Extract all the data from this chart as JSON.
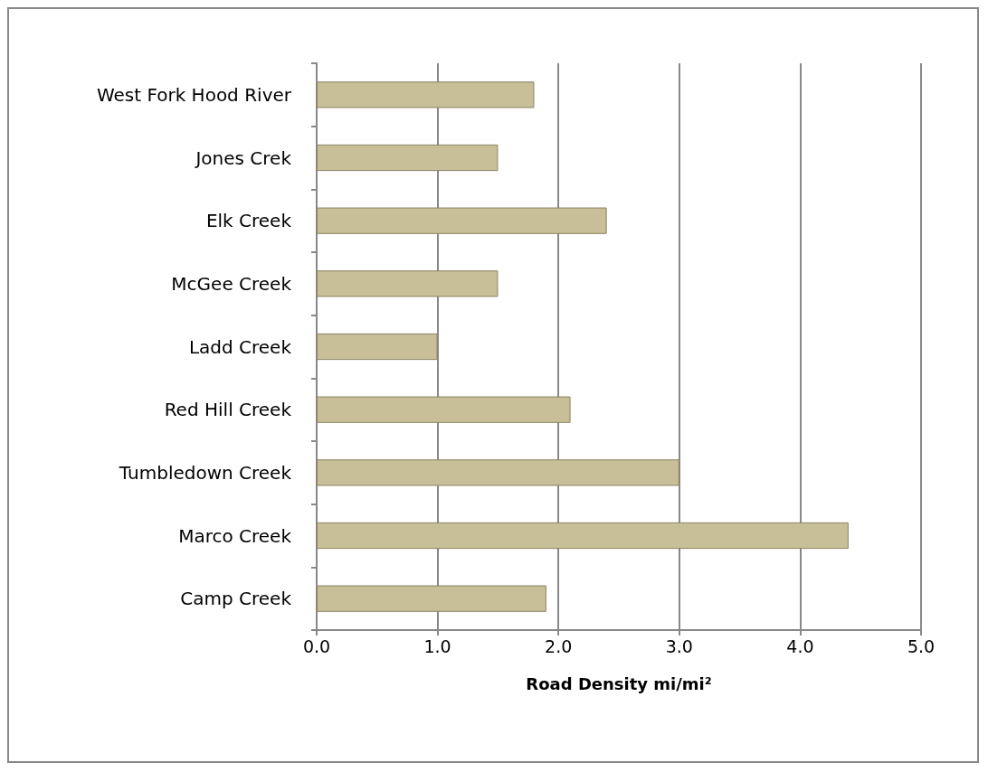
{
  "chart_data": {
    "type": "bar",
    "orientation": "horizontal",
    "xlabel": "Road Density mi/mi²",
    "categories": [
      "West Fork Hood River",
      "Jones Crek",
      "Elk Creek",
      "McGee Creek",
      "Ladd Creek",
      "Red Hill Creek",
      "Tumbledown Creek",
      "Marco Creek",
      "Camp Creek"
    ],
    "values": [
      1.8,
      1.5,
      2.4,
      1.5,
      1.0,
      2.1,
      3.0,
      4.4,
      1.9
    ],
    "color": "#c8bf98",
    "xlim": [
      0,
      5
    ],
    "xticks": [
      {
        "value": 0,
        "label": "0.0"
      },
      {
        "value": 1,
        "label": "1.0"
      },
      {
        "value": 2,
        "label": "2.0"
      },
      {
        "value": 3,
        "label": "3.0"
      },
      {
        "value": 4,
        "label": "4.0"
      },
      {
        "value": 5,
        "label": "5.0"
      }
    ],
    "grid": "x"
  }
}
